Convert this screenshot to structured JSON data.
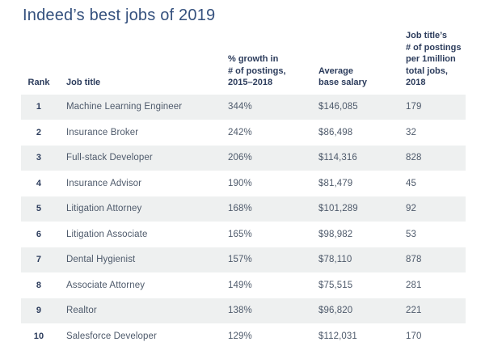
{
  "title": "Indeed’s best jobs of 2019",
  "colors": {
    "title_text": "#35517e",
    "header_text": "#2c3c5c",
    "body_text": "#4e5a6b",
    "row_stripe": "#eef0f0",
    "background": "#ffffff"
  },
  "header_display": {
    "rank": [
      "Rank"
    ],
    "job_title": [
      "Job title"
    ],
    "growth": [
      "% growth in",
      "# of postings,",
      "2015–2018"
    ],
    "salary": [
      "Average",
      "base salary"
    ],
    "postings": [
      "Job title’s",
      "# of postings",
      "per 1million",
      "total jobs, 2018"
    ]
  },
  "chart_data": {
    "type": "table",
    "title": "Indeed’s best jobs of 2019",
    "columns": [
      "Rank",
      "Job title",
      "% growth in # of postings, 2015–2018",
      "Average base salary",
      "Job title’s # of postings per 1million total jobs, 2018"
    ],
    "rows": [
      [
        "1",
        "Machine Learning Engineer",
        "344%",
        "$146,085",
        "179"
      ],
      [
        "2",
        "Insurance Broker",
        "242%",
        "$86,498",
        "32"
      ],
      [
        "3",
        "Full-stack Developer",
        "206%",
        "$114,316",
        "828"
      ],
      [
        "4",
        "Insurance Advisor",
        "190%",
        "$81,479",
        "45"
      ],
      [
        "5",
        "Litigation Attorney",
        "168%",
        "$101,289",
        "92"
      ],
      [
        "6",
        "Litigation Associate",
        "165%",
        "$98,982",
        "53"
      ],
      [
        "7",
        "Dental Hygienist",
        "157%",
        "$78,110",
        "878"
      ],
      [
        "8",
        "Associate Attorney",
        "149%",
        "$75,515",
        "281"
      ],
      [
        "9",
        "Realtor",
        "138%",
        "$96,820",
        "221"
      ],
      [
        "10",
        "Salesforce Developer",
        "129%",
        "$112,031",
        "170"
      ]
    ]
  }
}
